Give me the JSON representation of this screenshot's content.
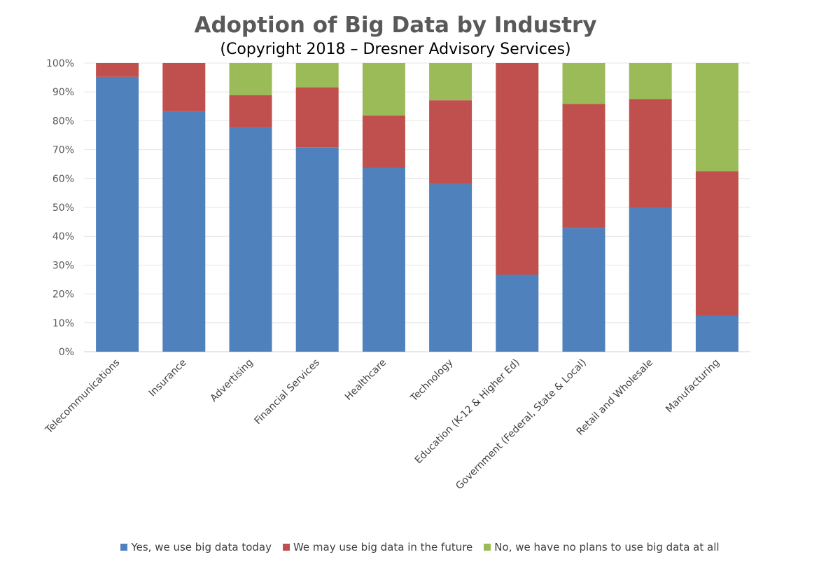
{
  "chart_data": {
    "type": "bar",
    "stacked": true,
    "title": "Adoption of Big Data by Industry",
    "subtitle": "(Copyright 2018 – Dresner Advisory Services)",
    "categories": [
      "Telecommunications",
      "Insurance",
      "Advertising",
      "Financial Services",
      "Healthcare",
      "Technology",
      "Education (K-12 & Higher Ed)",
      "Government (Federal, State & Local)",
      "Retail and Wholesale",
      "Manufacturing"
    ],
    "series": [
      {
        "name": "Yes, we use big data today",
        "color": "#4f81bd",
        "values": [
          95.2,
          83.3,
          77.8,
          70.8,
          63.6,
          58.1,
          26.7,
          42.9,
          50.0,
          12.5
        ]
      },
      {
        "name": "We may use big data in the future",
        "color": "#c0504d",
        "values": [
          4.8,
          16.7,
          11.1,
          20.8,
          18.2,
          29.0,
          73.3,
          42.9,
          37.5,
          50.0
        ]
      },
      {
        "name": "No, we have no plans to use big data at all",
        "color": "#9bbb59",
        "values": [
          0,
          0,
          11.1,
          8.4,
          18.2,
          12.9,
          0,
          14.2,
          12.5,
          37.5
        ]
      }
    ],
    "ylim": [
      0,
      100
    ],
    "yticks": [
      "0%",
      "10%",
      "20%",
      "30%",
      "40%",
      "50%",
      "60%",
      "70%",
      "80%",
      "90%",
      "100%"
    ],
    "grid": true,
    "legend": "bottom"
  }
}
